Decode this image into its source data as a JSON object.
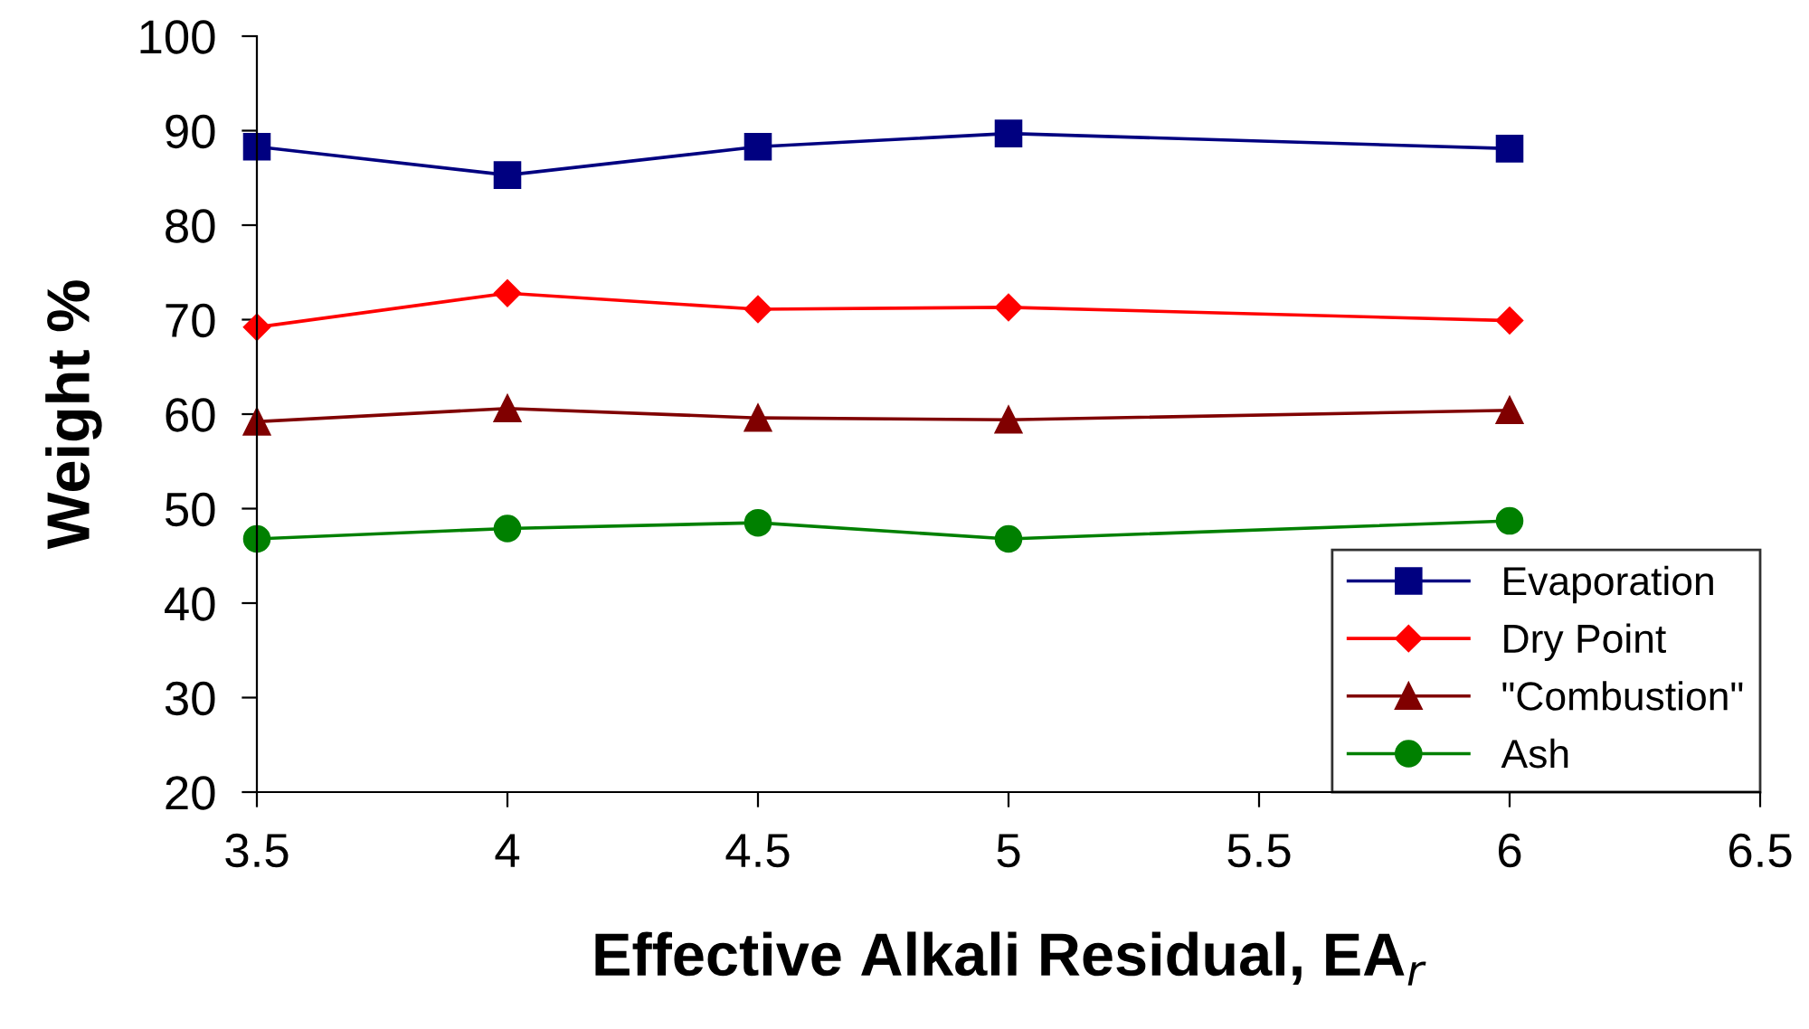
{
  "chart_data": {
    "type": "line",
    "xlabel": "Effective Alkali Residual, EA$_{r}$",
    "ylabel": "Weight %",
    "x": [
      3.5,
      4,
      4.5,
      5,
      6
    ],
    "series": [
      {
        "name": "Evaporation",
        "color": "#000080",
        "marker": "square",
        "values": [
          88.3,
          85.3,
          88.3,
          89.7,
          88.1
        ]
      },
      {
        "name": "Dry Point",
        "color": "#ff0000",
        "marker": "diamond",
        "values": [
          69.2,
          72.8,
          71.1,
          71.3,
          69.9
        ]
      },
      {
        "name": "\"Combustion\"",
        "color": "#800000",
        "marker": "triangle",
        "values": [
          59.2,
          60.6,
          59.6,
          59.4,
          60.4
        ]
      },
      {
        "name": "Ash",
        "color": "#008000",
        "marker": "circle",
        "values": [
          46.8,
          47.9,
          48.5,
          46.8,
          48.7
        ]
      }
    ],
    "xlim": [
      3.5,
      6.5
    ],
    "xticks": [
      3.5,
      4,
      4.5,
      5,
      5.5,
      6,
      6.5
    ],
    "ylim": [
      20,
      100
    ],
    "yticks": [
      20,
      30,
      40,
      50,
      60,
      70,
      80,
      90,
      100
    ],
    "grid": false,
    "legend": "bottom right",
    "line_style": "solid"
  }
}
